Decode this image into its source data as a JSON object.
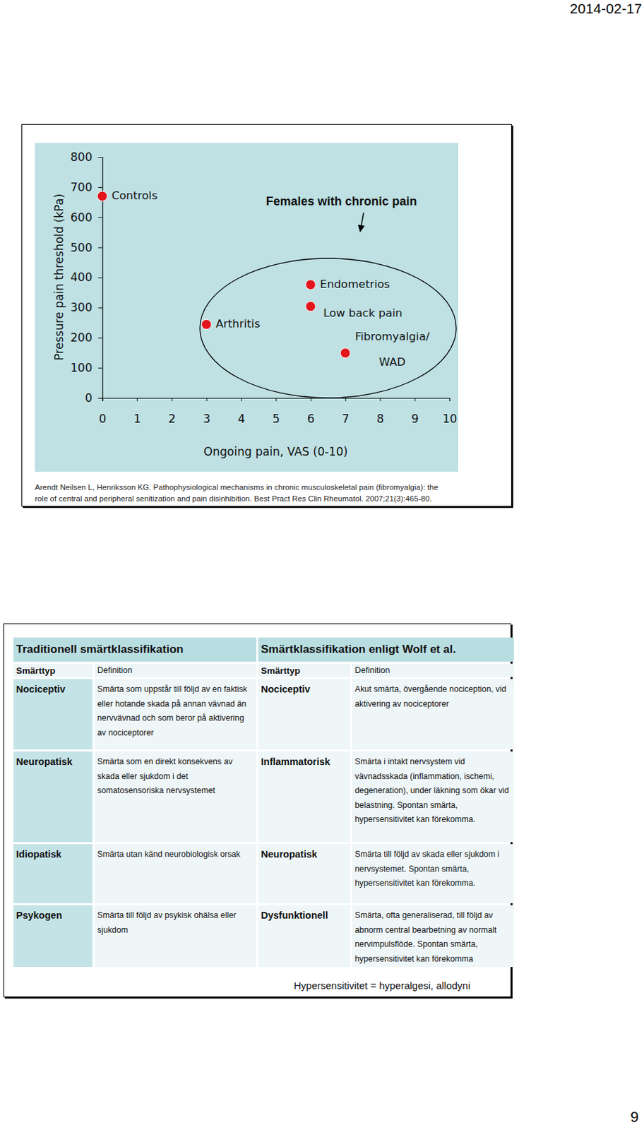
{
  "header": {
    "date": "2014-02-17"
  },
  "chart_data": {
    "type": "scatter",
    "annotation": "Females with chronic pain",
    "x_label": "Ongoing pain, VAS (0-10)",
    "y_label": "Pressure pain threshold (kPa)",
    "x": [
      0,
      3,
      6,
      6,
      7
    ],
    "values": [
      670,
      244,
      376,
      304,
      149
    ],
    "point_labels": [
      [
        "Controls"
      ],
      [
        "Arthritis"
      ],
      [
        "Endometrios"
      ],
      [
        "Low back pain"
      ],
      [
        "Fibromyalgia/",
        "WAD"
      ]
    ],
    "xlim": [
      0,
      10
    ],
    "xticks": [
      0,
      1,
      2,
      3,
      4,
      5,
      6,
      7,
      8,
      9,
      10
    ],
    "ylim": [
      0,
      800
    ],
    "yticks": [
      0,
      100,
      200,
      300,
      400,
      500,
      600,
      700,
      800
    ],
    "color": "#e3151c",
    "marker": "circle",
    "grid": false
  },
  "citation": [
    "Arendt Neilsen L, Henriksson KG. Pathophysiological mechanisms in chronic musculoskeletal pain (fibromyalgia): the",
    "role of central and peripheral senitization and pain disinhibition. Best Pract Res Clin Rheumatol. 2007;21(3):465-80."
  ],
  "table": {
    "headers": [
      "Traditionell smärtklassifikation",
      "Smärtklassifikation enligt Wolf et al."
    ],
    "columns": [
      "Smärttyp",
      "Definition",
      "Smärttyp",
      "Definition"
    ],
    "rows": [
      [
        "Nociceptiv",
        "Smärta som uppstår till följd av en faktisk eller hotande skada på annan vävnad än nervvävnad och som beror på aktivering av nociceptorer",
        "Nociceptiv",
        "Akut smärta, övergående nociception, vid aktivering av nociceptorer"
      ],
      [
        "Neuropatisk",
        "Smärta som en direkt konsekvens av skada eller sjukdom i det somatosensoriska nervsystemet",
        "Inflammatorisk",
        "Smärta i intakt nervsystem vid vävnadsskada (inflammation, ischemi, degeneration), under läkning som ökar vid belastning. Spontan smärta, hypersensitivitet kan förekomma."
      ],
      [
        "Idiopatisk",
        "Smärta utan känd neurobiologisk orsak",
        "Neuropatisk",
        "Smärta till följd av skada eller sjukdom i nervsystemet. Spontan smärta, hypersensitivitet kan förekomma."
      ],
      [
        "Psykogen",
        "Smärta till följd av psykisk ohälsa eller sjukdom",
        "Dysfunktionell",
        "Smärta, ofta generaliserad, till följd av abnorm central bearbetning av normalt nervimpulsflöde. Spontan smärta, hypersensitivitet kan förekomma"
      ]
    ],
    "footnote": "Hypersensitivitet = hyperalgesi, allodyni"
  },
  "page_number": "9"
}
